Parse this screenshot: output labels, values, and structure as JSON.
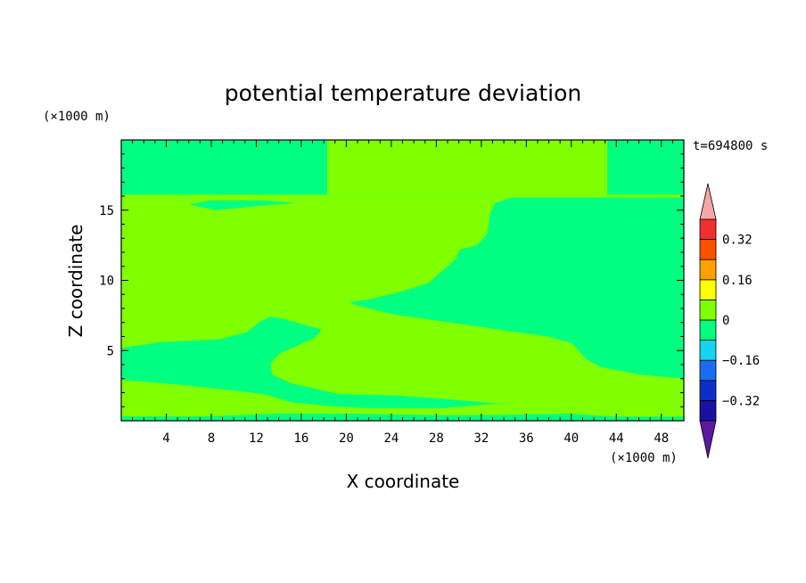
{
  "chart_data": {
    "type": "heatmap",
    "title": "potential temperature deviation",
    "xlabel": "X coordinate",
    "ylabel": "Z coordinate",
    "x_unit": "(×1000 m)",
    "y_unit": "(×1000 m)",
    "time_label": "t=694800 s",
    "xlim": [
      0,
      50
    ],
    "ylim": [
      0,
      20
    ],
    "x_ticks": [
      4,
      8,
      12,
      16,
      20,
      24,
      28,
      32,
      36,
      40,
      44,
      48
    ],
    "y_ticks": [
      5,
      10,
      15
    ],
    "colorbar": {
      "levels": [
        -0.4,
        -0.32,
        -0.24,
        -0.16,
        -0.08,
        0,
        0.08,
        0.16,
        0.24,
        0.32,
        0.4
      ],
      "colors": [
        "#5a1aa0",
        "#1c0fa4",
        "#0c2fc8",
        "#1a6cf2",
        "#14d4f0",
        "#00ff80",
        "#80ff00",
        "#ffff00",
        "#ffa000",
        "#ff5000",
        "#f03030",
        "#f6a6a6"
      ],
      "tick_labels": [
        "0.32",
        "0.16",
        "0",
        "−0.16",
        "−0.32"
      ],
      "tick_values": [
        0.32,
        0.16,
        0,
        -0.16,
        -0.32
      ]
    },
    "regions": [
      {
        "value_class": "0 to 0.08",
        "color": "#80ff00",
        "polygon": [
          [
            18.3,
            16.1
          ],
          [
            43.2,
            16.1
          ],
          [
            43.2,
            20
          ],
          [
            18.3,
            20
          ]
        ]
      },
      {
        "value_class": "0 to 0.08",
        "color": "#80ff00",
        "polygon": [
          [
            0,
            15.9
          ],
          [
            50,
            15.9
          ],
          [
            50,
            16.1
          ],
          [
            0,
            16.1
          ]
        ]
      },
      {
        "value_class": "0 to 0.08",
        "color": "#80ff00",
        "polygon": [
          [
            0,
            15.9
          ],
          [
            50,
            15.9
          ],
          [
            50,
            15.9
          ],
          [
            34.7,
            15.9
          ],
          [
            33.2,
            15.5
          ],
          [
            32.8,
            14.8
          ],
          [
            32.5,
            13.3
          ],
          [
            31.6,
            12.5
          ],
          [
            30.1,
            12.2
          ],
          [
            29.7,
            11.5
          ],
          [
            28.7,
            10.8
          ],
          [
            27.3,
            9.8
          ],
          [
            24.4,
            9.1
          ],
          [
            21.7,
            8.6
          ],
          [
            17.6,
            8.2
          ],
          [
            13.8,
            7.6
          ],
          [
            12.4,
            7.1
          ],
          [
            11.1,
            6.3
          ],
          [
            8.7,
            5.8
          ],
          [
            3.6,
            5.6
          ],
          [
            0,
            5.2
          ],
          [
            0,
            2.9
          ],
          [
            4.8,
            2.6
          ],
          [
            9.4,
            2.2
          ],
          [
            12.7,
            1.9
          ],
          [
            15.2,
            1.3
          ],
          [
            19.2,
            1.0
          ],
          [
            21.8,
            0.9
          ],
          [
            28.6,
            0.9
          ],
          [
            33.0,
            1.2
          ],
          [
            36.0,
            1.1
          ],
          [
            39.3,
            0.9
          ],
          [
            43.0,
            0.5
          ],
          [
            45.7,
            0.4
          ],
          [
            50,
            0.3
          ],
          [
            50,
            0.3
          ],
          [
            43.8,
            0.3
          ],
          [
            39.6,
            0.5
          ],
          [
            32.6,
            0.4
          ],
          [
            28.1,
            0.4
          ],
          [
            20.8,
            0.5
          ],
          [
            17.3,
            0.5
          ],
          [
            13.6,
            0.5
          ],
          [
            10.7,
            0.4
          ],
          [
            7.0,
            0.3
          ],
          [
            0,
            0.3
          ]
        ]
      },
      {
        "value_class": "0 to 0.08",
        "color": "#80ff00",
        "polygon": [
          [
            0,
            15.9
          ],
          [
            3.3,
            15.0
          ],
          [
            4.3,
            14.3
          ],
          [
            5.4,
            14.0
          ],
          [
            6.5,
            13.8
          ],
          [
            7.2,
            12.9
          ],
          [
            7.5,
            12.0
          ],
          [
            9.2,
            11.5
          ],
          [
            11.9,
            11.0
          ],
          [
            16.0,
            10.2
          ],
          [
            19.0,
            9.4
          ],
          [
            20.6,
            8.3
          ],
          [
            24.0,
            7.6
          ],
          [
            28.4,
            7.1
          ],
          [
            33.5,
            6.5
          ],
          [
            37.9,
            6.0
          ],
          [
            40.1,
            5.5
          ],
          [
            41.3,
            4.4
          ],
          [
            42.7,
            3.8
          ],
          [
            46.0,
            3.3
          ],
          [
            50,
            3.0
          ],
          [
            50,
            0.3
          ],
          [
            44.5,
            0.3
          ],
          [
            38.9,
            0.8
          ],
          [
            33.8,
            1.2
          ],
          [
            28.0,
            1.6
          ],
          [
            24.2,
            1.8
          ],
          [
            19.4,
            1.9
          ],
          [
            15.0,
            2.7
          ],
          [
            13.4,
            3.3
          ],
          [
            13.3,
            4.1
          ],
          [
            14.1,
            4.8
          ],
          [
            17.2,
            5.9
          ],
          [
            17.8,
            6.5
          ],
          [
            14.2,
            7.3
          ],
          [
            10.4,
            7.7
          ],
          [
            5.6,
            7.9
          ],
          [
            1.2,
            8.1
          ],
          [
            0,
            8.1
          ]
        ]
      }
    ],
    "cool_lens": [
      [
        6.0,
        15.4
      ],
      [
        8.4,
        15.0
      ],
      [
        12.2,
        15.3
      ],
      [
        15.5,
        15.5
      ],
      [
        12.6,
        15.7
      ],
      [
        7.9,
        15.7
      ]
    ]
  }
}
